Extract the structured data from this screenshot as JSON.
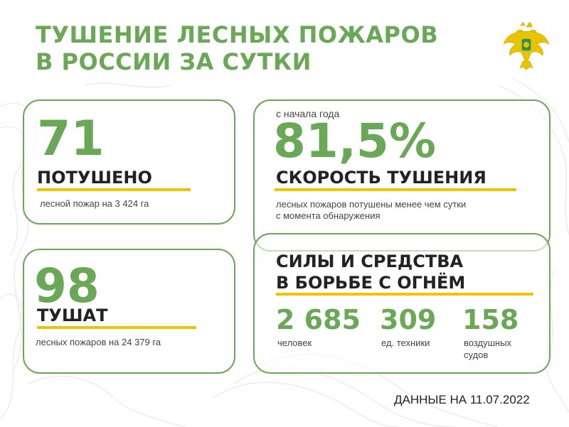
{
  "title": {
    "line1": "ТУШЕНИЕ ЛЕСНЫХ ПОЖАРОВ",
    "line2": "В РОССИИ ЗА СУТКИ"
  },
  "emblem": {
    "icon": "double-headed-eagle-emblem-icon",
    "color": "#e8c300"
  },
  "extinguished": {
    "value": "71",
    "heading": "ПОТУШЕНО",
    "description": "лесной пожар на 3 424 га"
  },
  "active": {
    "value": "98",
    "heading": "ТУШАТ",
    "description": "лесных пожаров на 24 379 га"
  },
  "speed": {
    "caption": "с начала года",
    "value": "81,5%",
    "heading": "СКОРОСТЬ ТУШЕНИЯ",
    "description_line1": "лесных пожаров потушены менее чем сутки",
    "description_line2": "с момента обнаружения"
  },
  "forces": {
    "heading_line1": "СИЛЫ И СРЕДСТВА",
    "heading_line2": "В БОРЬБЕ С ОГНЁМ",
    "stats": [
      {
        "value": "2 685",
        "label": "человек"
      },
      {
        "value": "309",
        "label": "ед. техники"
      },
      {
        "value": "158",
        "label_line1": "воздушных",
        "label_line2": "судов"
      }
    ]
  },
  "footer": "ДАННЫЕ НА 11.07.2022",
  "colors": {
    "accent": "#6aa858",
    "highlight": "#f2c400",
    "text": "#222222"
  }
}
